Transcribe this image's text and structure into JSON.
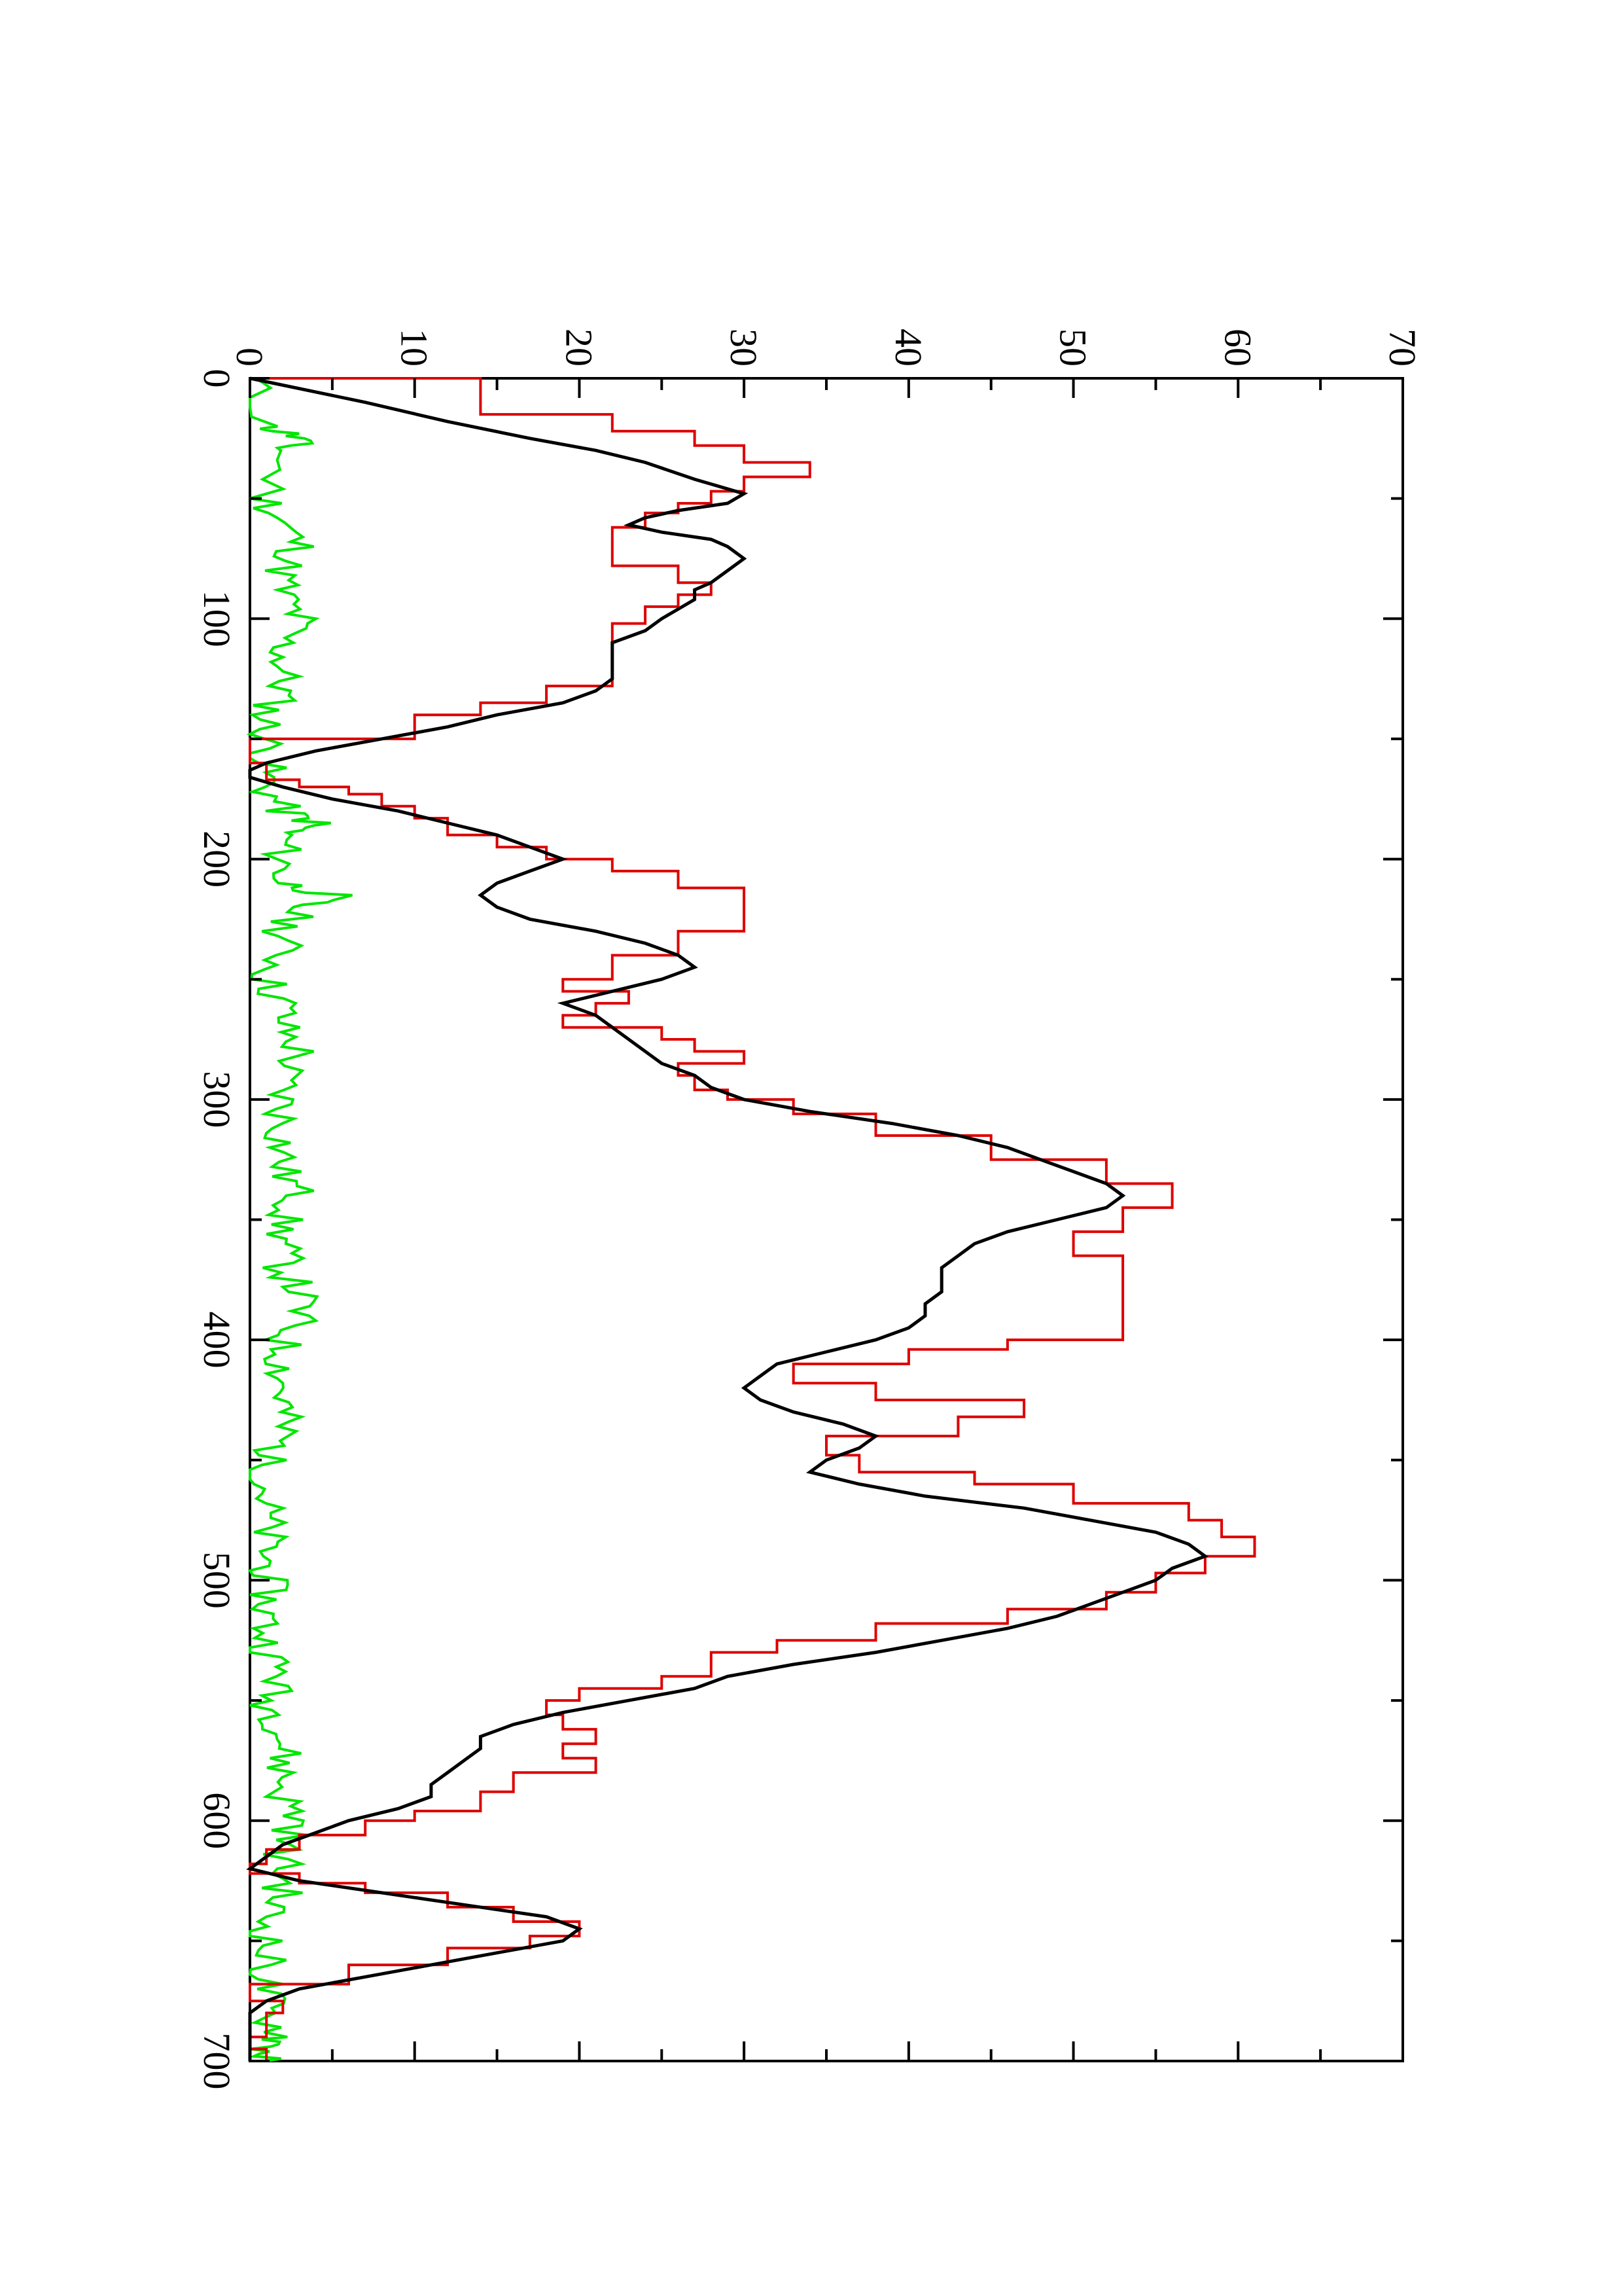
{
  "chart_data": {
    "type": "line",
    "orientation": "rotated-90-clockwise",
    "title": "",
    "xlabel": "",
    "ylabel": "",
    "xlim": [
      0,
      700
    ],
    "ylim": [
      0,
      70
    ],
    "grid": false,
    "legend": "none",
    "x_ticks": [
      0,
      100,
      200,
      300,
      400,
      500,
      600,
      700
    ],
    "y_ticks": [
      0,
      10,
      20,
      30,
      40,
      50,
      60,
      70
    ],
    "x_tick_labels": [
      "0",
      "100",
      "200",
      "300",
      "400",
      "500",
      "600",
      "700"
    ],
    "y_tick_labels": [
      "0",
      "10",
      "20",
      "30",
      "40",
      "50",
      "60",
      "70"
    ],
    "series": [
      {
        "color": "#dd0000",
        "step": true,
        "x": [
          0,
          15,
          22,
          28,
          35,
          41,
          47,
          52,
          56,
          62,
          66,
          70,
          78,
          85,
          90,
          95,
          102,
          110,
          120,
          128,
          135,
          140,
          150,
          160,
          167,
          170,
          173,
          178,
          183,
          190,
          195,
          200,
          205,
          212,
          220,
          230,
          240,
          250,
          255,
          260,
          265,
          270,
          275,
          280,
          285,
          290,
          296,
          300,
          306,
          315,
          325,
          335,
          345,
          355,
          365,
          375,
          385,
          395,
          400,
          404,
          410,
          418,
          425,
          432,
          440,
          448,
          455,
          460,
          468,
          475,
          482,
          490,
          497,
          505,
          512,
          518,
          525,
          530,
          540,
          545,
          550,
          556,
          562,
          568,
          574,
          580,
          588,
          596,
          600,
          606,
          612,
          618,
          622,
          626,
          630,
          636,
          642,
          648,
          653,
          660,
          668,
          675,
          680,
          685,
          690,
          695,
          700
        ],
        "y": [
          0,
          14,
          22,
          27,
          30,
          34,
          30,
          28,
          26,
          24,
          22,
          22,
          22,
          26,
          28,
          26,
          24,
          22,
          22,
          22,
          18,
          14,
          10,
          0,
          1,
          3,
          6,
          8,
          10,
          12,
          15,
          18,
          22,
          26,
          30,
          30,
          26,
          22,
          19,
          23,
          21,
          19,
          25,
          27,
          30,
          26,
          27,
          29,
          33,
          38,
          45,
          52,
          56,
          53,
          50,
          53,
          53,
          53,
          53,
          46,
          40,
          33,
          38,
          47,
          43,
          35,
          37,
          44,
          50,
          57,
          59,
          61,
          58,
          55,
          52,
          46,
          38,
          32,
          28,
          25,
          20,
          18,
          19,
          21,
          19,
          21,
          16,
          14,
          10,
          7,
          3,
          1,
          0,
          3,
          7,
          12,
          16,
          20,
          17,
          12,
          6,
          0,
          2,
          1,
          1,
          0,
          1
        ]
      },
      {
        "color": "#000000",
        "step": false,
        "x": [
          0,
          10,
          18,
          25,
          30,
          35,
          42,
          48,
          52,
          55,
          58,
          61,
          64,
          67,
          70,
          75,
          80,
          85,
          88,
          92,
          96,
          100,
          105,
          110,
          115,
          120,
          125,
          130,
          135,
          140,
          145,
          150,
          155,
          160,
          163,
          166,
          170,
          175,
          180,
          185,
          190,
          195,
          200,
          205,
          210,
          215,
          220,
          225,
          230,
          235,
          240,
          245,
          250,
          255,
          260,
          265,
          270,
          275,
          280,
          285,
          290,
          295,
          300,
          305,
          310,
          315,
          320,
          325,
          330,
          335,
          340,
          345,
          350,
          355,
          360,
          365,
          370,
          375,
          380,
          385,
          390,
          395,
          400,
          405,
          410,
          415,
          420,
          425,
          430,
          435,
          440,
          445,
          450,
          455,
          460,
          465,
          470,
          475,
          480,
          485,
          490,
          495,
          500,
          505,
          510,
          515,
          520,
          525,
          530,
          535,
          540,
          545,
          550,
          555,
          560,
          565,
          570,
          575,
          580,
          585,
          590,
          595,
          600,
          605,
          610,
          615,
          620,
          625,
          630,
          635,
          640,
          645,
          650,
          655,
          660,
          665,
          670,
          675,
          680,
          685,
          690,
          695,
          700
        ],
        "y": [
          0,
          7,
          12,
          17,
          21,
          24,
          27,
          30,
          29,
          26,
          24,
          23,
          25,
          28,
          29,
          30,
          29,
          28,
          27,
          27,
          26,
          25,
          24,
          22,
          22,
          22,
          22,
          21,
          19,
          15,
          12,
          8,
          4,
          1,
          0,
          0,
          2,
          5,
          9,
          12,
          15,
          17,
          19,
          17,
          15,
          14,
          15,
          17,
          21,
          24,
          26,
          27,
          25,
          22,
          19,
          21,
          22,
          23,
          24,
          25,
          27,
          28,
          30,
          34,
          39,
          43,
          46,
          48,
          50,
          52,
          53,
          52,
          49,
          46,
          44,
          43,
          42,
          42,
          42,
          41,
          41,
          40,
          38,
          35,
          32,
          31,
          30,
          31,
          33,
          36,
          38,
          37,
          35,
          34,
          37,
          41,
          47,
          51,
          55,
          57,
          58,
          56,
          55,
          53,
          51,
          49,
          46,
          42,
          38,
          33,
          29,
          27,
          23,
          19,
          16,
          14,
          14,
          13,
          12,
          11,
          11,
          9,
          6,
          4,
          2,
          1,
          0,
          3,
          8,
          13,
          18,
          20,
          19,
          15,
          11,
          7,
          3,
          1,
          0,
          0,
          0,
          0,
          0
        ]
      },
      {
        "color": "#00e600",
        "step": false,
        "noise_seed": 11,
        "x": [
          0,
          20,
          25,
          30,
          50,
          60,
          70,
          80,
          90,
          100,
          110,
          120,
          130,
          140,
          150,
          160,
          170,
          180,
          185,
          190,
          200,
          210,
          215,
          220,
          230,
          240,
          250,
          260,
          270,
          280,
          290,
          300,
          310,
          320,
          330,
          340,
          350,
          360,
          370,
          380,
          390,
          400,
          410,
          420,
          430,
          440,
          450,
          460,
          470,
          480,
          490,
          500,
          510,
          520,
          530,
          540,
          550,
          560,
          570,
          580,
          590,
          600,
          610,
          620,
          630,
          640,
          650,
          660,
          670,
          680,
          690,
          695,
          700
        ],
        "y": [
          0,
          1,
          3,
          2,
          1,
          2,
          3,
          2,
          2,
          3,
          2,
          2,
          2,
          1,
          1,
          1,
          1,
          2,
          4,
          2,
          2,
          2,
          5,
          3,
          2,
          2,
          1,
          2,
          2,
          3,
          2,
          2,
          2,
          2,
          2,
          3,
          2,
          2,
          2,
          3,
          3,
          2,
          2,
          2,
          2,
          2,
          1,
          1,
          1,
          1,
          1,
          1,
          1,
          1,
          1,
          2,
          1,
          2,
          2,
          2,
          2,
          3,
          2,
          2,
          2,
          1,
          1,
          1,
          1,
          1,
          2,
          1,
          1
        ]
      }
    ]
  }
}
